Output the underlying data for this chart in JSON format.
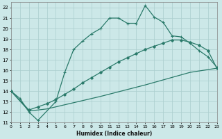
{
  "xlabel": "Humidex (Indice chaleur)",
  "xlim": [
    0,
    23
  ],
  "ylim": [
    11,
    22.5
  ],
  "yticks": [
    11,
    12,
    13,
    14,
    15,
    16,
    17,
    18,
    19,
    20,
    21,
    22
  ],
  "xticks": [
    0,
    1,
    2,
    3,
    4,
    5,
    6,
    7,
    8,
    9,
    10,
    11,
    12,
    13,
    14,
    15,
    16,
    17,
    18,
    19,
    20,
    21,
    22,
    23
  ],
  "bg_color": "#cce8e8",
  "grid_color": "#aacece",
  "line_color": "#2a7a6a",
  "line1_x": [
    0,
    1,
    2,
    3,
    5,
    6,
    7,
    8,
    9,
    10,
    11,
    12,
    13,
    14,
    15,
    16,
    17,
    18,
    19,
    20,
    21,
    22,
    23
  ],
  "line1_y": [
    14,
    13.3,
    12.0,
    11.2,
    13.0,
    15.8,
    18.0,
    18.8,
    19.5,
    20.0,
    21.0,
    21.0,
    20.5,
    20.5,
    22.2,
    21.1,
    20.6,
    19.3,
    19.2,
    18.6,
    17.9,
    17.3,
    16.3
  ],
  "line2_x": [
    0,
    2,
    3,
    4,
    5,
    6,
    7,
    8,
    9,
    10,
    11,
    12,
    13,
    14,
    15,
    16,
    17,
    18,
    19,
    20,
    21,
    22,
    23
  ],
  "line2_y": [
    14,
    12.2,
    12.5,
    12.8,
    13.2,
    13.7,
    14.2,
    14.8,
    15.3,
    15.8,
    16.3,
    16.8,
    17.2,
    17.6,
    18.0,
    18.3,
    18.6,
    18.9,
    18.9,
    18.7,
    18.4,
    17.9,
    16.2
  ],
  "line3_x": [
    0,
    2,
    3,
    4,
    5,
    10,
    15,
    20,
    23
  ],
  "line3_y": [
    14,
    12.1,
    12.2,
    12.3,
    12.5,
    13.5,
    14.6,
    15.8,
    16.2
  ]
}
